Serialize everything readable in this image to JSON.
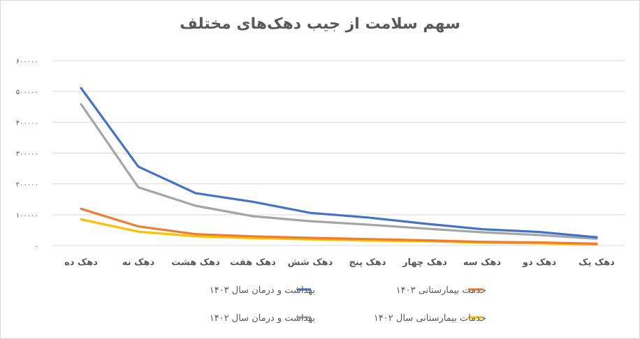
{
  "chart_data": {
    "type": "line",
    "title": "سهم سلامت از جیب دهک‌های مختلف",
    "xlabel": "",
    "ylabel": "",
    "categories": [
      "دهک یک",
      "دهک دو",
      "دهک سه",
      "دهک چهار",
      "دهک پنج",
      "دهک شش",
      "دهک هفت",
      "دهک هشت",
      "دهک نه",
      "دهک ده"
    ],
    "yticks": [
      0,
      100000,
      200000,
      300000,
      400000,
      500000,
      600000
    ],
    "ytick_labels": [
      "۰",
      "۱۰۰۰۰۰",
      "۲۰۰۰۰۰",
      "۳۰۰۰۰۰",
      "۴۰۰۰۰۰",
      "۵۰۰۰۰۰",
      "۶۰۰۰۰۰"
    ],
    "ylim": [
      0,
      600000
    ],
    "grid": true,
    "legend_position": "bottom",
    "series": [
      {
        "name": "بهداشت و درمان سال ۱۴۰۳",
        "color": "#4472c4",
        "values": [
          27000,
          44000,
          53000,
          71000,
          91000,
          106000,
          142000,
          170000,
          256000,
          511000
        ]
      },
      {
        "name": "خدمت بیمارستانی ۱۴۰۳",
        "color": "#ed7d31",
        "values": [
          6000,
          10000,
          12000,
          17000,
          21000,
          25000,
          30000,
          37000,
          62000,
          119000
        ]
      },
      {
        "name": "بهداشت و درمان سال ۱۴۰۲",
        "color": "#a5a5a5",
        "values": [
          22000,
          34000,
          43000,
          55000,
          68000,
          79000,
          95000,
          129000,
          189000,
          459000
        ]
      },
      {
        "name": "خدمات بیمارستانی سال ۱۴۰۲",
        "color": "#ffc000",
        "values": [
          3000,
          7000,
          9000,
          14000,
          16000,
          20000,
          24000,
          30000,
          45000,
          85000
        ]
      }
    ]
  }
}
